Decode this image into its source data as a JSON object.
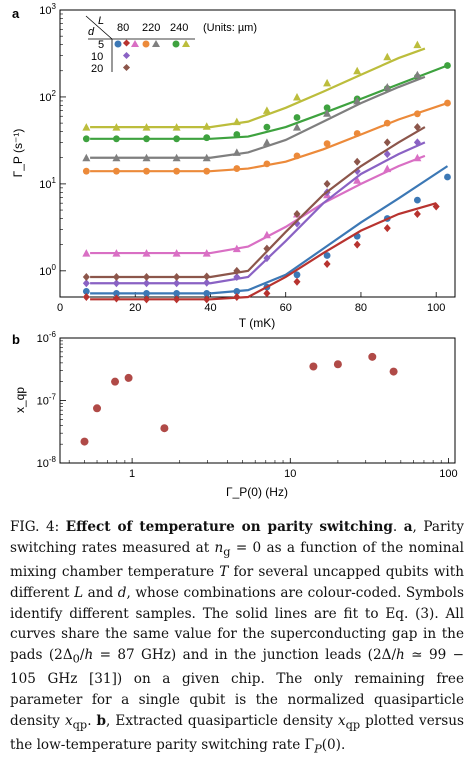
{
  "figure": {
    "panel_a_label": "a",
    "panel_b_label": "b",
    "legend": {
      "L_symbol": "L",
      "d_symbol": "d",
      "L_values": [
        "80",
        "220",
        "240"
      ],
      "d_values": [
        "5",
        "10",
        "20"
      ],
      "units": "(Units: µm)"
    }
  },
  "chart_data": [
    {
      "type": "scatter",
      "panel": "a",
      "xlabel": "T (mK)",
      "ylabel": "Γ_P (s⁻¹)",
      "xlim": [
        0,
        105
      ],
      "ylim": [
        0.5,
        1000
      ],
      "y_scale": "log",
      "x_ticks": [
        0,
        20,
        40,
        60,
        80,
        100
      ],
      "y_ticks": [
        "10^0",
        "10^1",
        "10^2",
        "10^3"
      ],
      "series": [
        {
          "name": "L=80, d=5",
          "marker": "circle",
          "color": "#3c78b5",
          "x": [
            7,
            15,
            23,
            31,
            39,
            47,
            55,
            63,
            71,
            79,
            87,
            95,
            103
          ],
          "y": [
            0.58,
            0.55,
            0.55,
            0.55,
            0.55,
            0.58,
            0.65,
            0.9,
            1.5,
            2.5,
            4.0,
            6.5,
            12
          ],
          "fit": [
            [
              8,
              0.55
            ],
            [
              40,
              0.55
            ],
            [
              50,
              0.6
            ],
            [
              60,
              0.9
            ],
            [
              70,
              1.8
            ],
            [
              80,
              3.6
            ],
            [
              90,
              6.8
            ],
            [
              103,
              16
            ]
          ]
        },
        {
          "name": "L=80, d=5 (sample 2)",
          "marker": "diamond",
          "color": "#b8332f",
          "x": [
            7,
            15,
            23,
            31,
            39,
            47,
            55,
            63,
            71,
            79,
            87,
            95,
            100
          ],
          "y": [
            0.5,
            0.48,
            0.47,
            0.47,
            0.47,
            0.5,
            0.55,
            0.75,
            1.2,
            2.0,
            3.1,
            4.5,
            5.5
          ],
          "fit": [
            [
              8,
              0.47
            ],
            [
              40,
              0.47
            ],
            [
              50,
              0.5
            ],
            [
              60,
              0.85
            ],
            [
              70,
              1.6
            ],
            [
              80,
              2.9
            ],
            [
              90,
              4.5
            ],
            [
              100,
              6
            ]
          ]
        },
        {
          "name": "L=220, d=5",
          "marker": "circle",
          "color": "#ec8a3a",
          "x": [
            7,
            15,
            23,
            31,
            39,
            47,
            55,
            63,
            71,
            79,
            87,
            95,
            103
          ],
          "y": [
            14,
            14,
            14,
            14,
            14,
            15,
            17,
            21,
            29,
            38,
            50,
            64,
            85
          ],
          "fit": [
            [
              8,
              14
            ],
            [
              40,
              14
            ],
            [
              50,
              15
            ],
            [
              60,
              18
            ],
            [
              70,
              25
            ],
            [
              80,
              37
            ],
            [
              90,
              55
            ],
            [
              103,
              85
            ]
          ]
        },
        {
          "name": "L=240, d=5",
          "marker": "circle",
          "color": "#3ea23f",
          "x": [
            7,
            15,
            23,
            31,
            39,
            47,
            55,
            63,
            71,
            79,
            87,
            95,
            103
          ],
          "y": [
            33,
            33,
            33,
            33,
            34,
            37,
            45,
            58,
            75,
            95,
            125,
            170,
            230
          ],
          "fit": [
            [
              8,
              33
            ],
            [
              40,
              33
            ],
            [
              50,
              35
            ],
            [
              60,
              45
            ],
            [
              70,
              65
            ],
            [
              80,
              95
            ],
            [
              90,
              140
            ],
            [
              103,
              230
            ]
          ]
        },
        {
          "name": "L=240, d=5 (sample 2)",
          "marker": "triangle",
          "color": "#bcbd3c",
          "x": [
            7,
            15,
            23,
            31,
            39,
            47,
            55,
            63,
            71,
            79,
            87,
            95
          ],
          "y": [
            45,
            45,
            45,
            45,
            46,
            52,
            70,
            100,
            145,
            200,
            290,
            400
          ],
          "fit": [
            [
              8,
              45
            ],
            [
              40,
              45
            ],
            [
              50,
              52
            ],
            [
              60,
              75
            ],
            [
              70,
              115
            ],
            [
              80,
              180
            ],
            [
              90,
              280
            ],
            [
              97,
              360
            ]
          ]
        },
        {
          "name": "L=220, d=5 (sample 2)",
          "marker": "triangle",
          "color": "#7f7f7f",
          "x": [
            7,
            15,
            23,
            31,
            39,
            47,
            55,
            63,
            71,
            79,
            87,
            95
          ],
          "y": [
            20,
            20,
            20,
            20,
            20,
            23,
            30,
            45,
            65,
            90,
            130,
            180
          ],
          "fit": [
            [
              8,
              20
            ],
            [
              40,
              20
            ],
            [
              50,
              23
            ],
            [
              60,
              32
            ],
            [
              70,
              52
            ],
            [
              80,
              85
            ],
            [
              90,
              130
            ],
            [
              97,
              170
            ]
          ]
        },
        {
          "name": "L=80, d=5 (sample 3)",
          "marker": "triangle",
          "color": "#d96fc4",
          "x": [
            7,
            15,
            23,
            31,
            39,
            47,
            55,
            63,
            71,
            79,
            87,
            95
          ],
          "y": [
            1.6,
            1.6,
            1.6,
            1.6,
            1.6,
            1.8,
            2.6,
            4.5,
            7.5,
            11,
            15,
            20
          ],
          "fit": [
            [
              8,
              1.6
            ],
            [
              40,
              1.6
            ],
            [
              50,
              1.9
            ],
            [
              60,
              3.2
            ],
            [
              70,
              6
            ],
            [
              80,
              10
            ],
            [
              90,
              16
            ],
            [
              97,
              21
            ]
          ]
        },
        {
          "name": "L=80, d=10",
          "marker": "diamond",
          "color": "#8a62c4",
          "x": [
            7,
            15,
            23,
            31,
            39,
            47,
            55,
            63,
            71,
            79,
            87,
            95
          ],
          "y": [
            0.72,
            0.72,
            0.72,
            0.72,
            0.73,
            0.85,
            1.4,
            3.5,
            8,
            14,
            22,
            30
          ],
          "fit": [
            [
              8,
              0.72
            ],
            [
              40,
              0.72
            ],
            [
              50,
              0.85
            ],
            [
              60,
              2.2
            ],
            [
              70,
              6
            ],
            [
              80,
              13
            ],
            [
              90,
              22
            ],
            [
              97,
              30
            ]
          ]
        },
        {
          "name": "L=80, d=20",
          "marker": "diamond",
          "color": "#8c564b",
          "x": [
            7,
            15,
            23,
            31,
            39,
            47,
            55,
            63,
            71,
            79,
            87,
            95
          ],
          "y": [
            0.85,
            0.85,
            0.85,
            0.85,
            0.86,
            1.0,
            1.8,
            4.5,
            10,
            18,
            30,
            45
          ],
          "fit": [
            [
              8,
              0.85
            ],
            [
              40,
              0.85
            ],
            [
              50,
              1.0
            ],
            [
              60,
              2.8
            ],
            [
              70,
              7.5
            ],
            [
              80,
              16
            ],
            [
              90,
              30
            ],
            [
              97,
              45
            ]
          ]
        }
      ]
    },
    {
      "type": "scatter",
      "panel": "b",
      "xlabel": "Γ_P(0) (Hz)",
      "ylabel": "x_qp",
      "x_scale": "log",
      "y_scale": "log",
      "xlim": [
        0.35,
        110
      ],
      "ylim": [
        1e-08,
        1e-06
      ],
      "x_ticks": [
        "1",
        "10",
        "100"
      ],
      "y_ticks": [
        "10^-6",
        "10^-7",
        "10^-8"
      ],
      "series": [
        {
          "color": "#b04a47",
          "x": [
            0.5,
            0.6,
            0.78,
            0.95,
            1.6,
            14,
            20,
            33,
            45
          ],
          "y": [
            2.2e-08,
            7.5e-08,
            2e-07,
            2.3e-07,
            3.6e-08,
            3.5e-07,
            3.8e-07,
            5e-07,
            2.9e-07
          ]
        }
      ]
    }
  ]
}
